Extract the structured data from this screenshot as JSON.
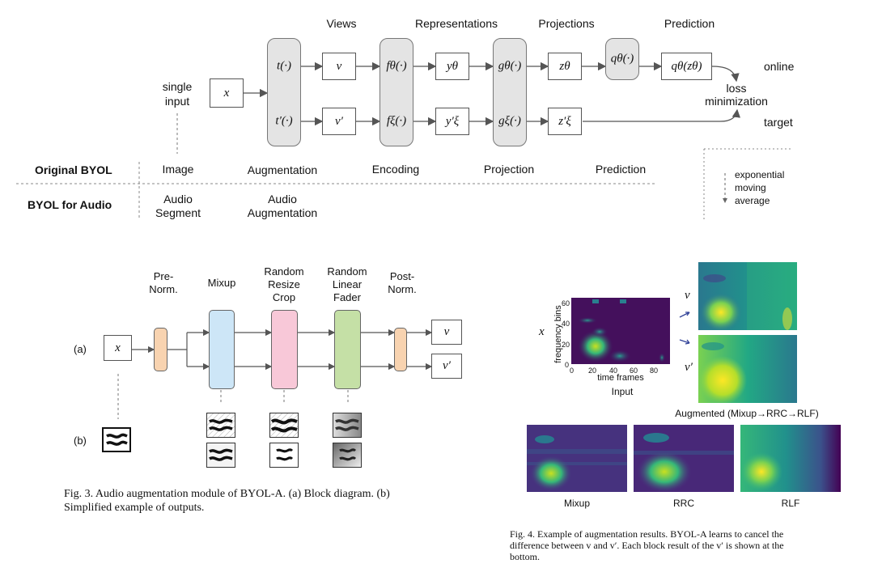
{
  "top_figure": {
    "headers": {
      "views": "Views",
      "representations": "Representations",
      "projections": "Projections",
      "prediction": "Prediction"
    },
    "single_input": [
      "single",
      "input"
    ],
    "x": "x",
    "t_online": "t(·)",
    "t_target": "t′(·)",
    "v": "v",
    "v_prime": "v′",
    "f_online": "fθ(·)",
    "f_target": "fξ(·)",
    "y_online": "yθ",
    "y_target": "y′ξ",
    "g_online": "gθ(·)",
    "g_target": "gξ(·)",
    "z_online": "zθ",
    "z_target": "z′ξ",
    "q": "qθ(·)",
    "qz": "qθ(zθ)",
    "online": "online",
    "target": "target",
    "loss": [
      "loss",
      "minimization"
    ],
    "ema": [
      "exponential",
      "moving",
      "average"
    ],
    "row_original": {
      "name": "Original BYOL",
      "cells": [
        "Image",
        "Augmentation",
        "Encoding",
        "Projection",
        "Prediction"
      ]
    },
    "row_audio": {
      "name": "BYOL for Audio",
      "cells": [
        [
          "Audio",
          "Segment"
        ],
        [
          "Audio",
          "Augmentation"
        ]
      ]
    }
  },
  "fig3": {
    "stages": {
      "pre_norm": [
        "Pre-",
        "Norm."
      ],
      "mixup": [
        "Mixup"
      ],
      "rrc": [
        "Random",
        "Resize",
        "Crop"
      ],
      "rlf": [
        "Random",
        "Linear",
        "Fader"
      ],
      "post_norm": [
        "Post-",
        "Norm."
      ]
    },
    "label_a": "(a)",
    "label_b": "(b)",
    "x": "x",
    "v": "v",
    "v_prime": "v′",
    "colors": {
      "norm": "#f8d3b0",
      "mixup": "#cde6f7",
      "rrc": "#f8c8d8",
      "rlf": "#c5e0a6"
    },
    "caption": [
      "Fig. 3.   Audio augmentation module of BYOL-A. (a) Block diagram. (b)",
      "Simplified example of outputs."
    ]
  },
  "fig4": {
    "x": "x",
    "v": "v",
    "v_prime": "v′",
    "ylabel": "frequency bins",
    "xlabel": "time frames",
    "yticks": [
      "60",
      "40",
      "20",
      "0"
    ],
    "xticks": [
      "0",
      "20",
      "40",
      "60",
      "80"
    ],
    "input_label": "Input",
    "augmented_label": "Augmented (Mixup→RRC→RLF)",
    "bottom_labels": [
      "Mixup",
      "RRC",
      "RLF"
    ],
    "caption": [
      "Fig. 4.   Example of augmentation results. BYOL-A learns to cancel the",
      "difference between v and v′. Each block result of the v′ is shown at the",
      "bottom."
    ]
  }
}
